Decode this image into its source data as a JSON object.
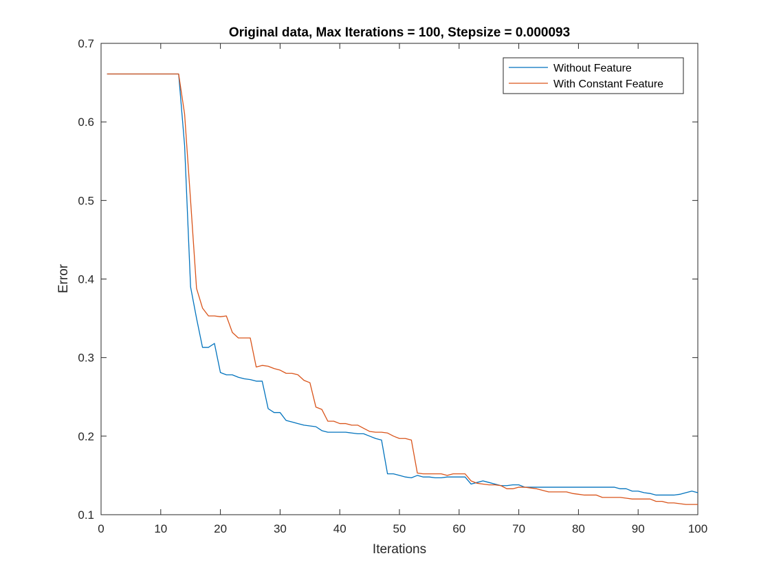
{
  "chart_data": {
    "type": "line",
    "title": "Original data, Max Iterations = 100, Stepsize = 0.000093",
    "xlabel": "Iterations",
    "ylabel": "Error",
    "xlim": [
      0,
      100
    ],
    "ylim": [
      0.1,
      0.7
    ],
    "xticks": [
      "0",
      "10",
      "20",
      "30",
      "40",
      "50",
      "60",
      "70",
      "80",
      "90",
      "100"
    ],
    "yticks": [
      "0.1",
      "0.2",
      "0.3",
      "0.4",
      "0.5",
      "0.6",
      "0.7"
    ],
    "grid": false,
    "legend_position": "top-right",
    "x": [
      1,
      2,
      3,
      4,
      5,
      6,
      7,
      8,
      9,
      10,
      11,
      12,
      13,
      14,
      15,
      16,
      17,
      18,
      19,
      20,
      21,
      22,
      23,
      24,
      25,
      26,
      27,
      28,
      29,
      30,
      31,
      32,
      33,
      34,
      35,
      36,
      37,
      38,
      39,
      40,
      41,
      42,
      43,
      44,
      45,
      46,
      47,
      48,
      49,
      50,
      51,
      52,
      53,
      54,
      55,
      56,
      57,
      58,
      59,
      60,
      61,
      62,
      63,
      64,
      65,
      66,
      67,
      68,
      69,
      70,
      71,
      72,
      73,
      74,
      75,
      76,
      77,
      78,
      79,
      80,
      81,
      82,
      83,
      84,
      85,
      86,
      87,
      88,
      89,
      90,
      91,
      92,
      93,
      94,
      95,
      96,
      97,
      98,
      99,
      100
    ],
    "series": [
      {
        "name": "Without Feature",
        "color": "#0072BD",
        "values": [
          0.661,
          0.661,
          0.661,
          0.661,
          0.661,
          0.661,
          0.661,
          0.661,
          0.661,
          0.661,
          0.661,
          0.661,
          0.661,
          0.57,
          0.39,
          0.35,
          0.313,
          0.313,
          0.318,
          0.281,
          0.278,
          0.278,
          0.275,
          0.273,
          0.272,
          0.27,
          0.27,
          0.235,
          0.23,
          0.23,
          0.22,
          0.218,
          0.216,
          0.214,
          0.213,
          0.212,
          0.207,
          0.205,
          0.205,
          0.205,
          0.205,
          0.204,
          0.203,
          0.203,
          0.2,
          0.197,
          0.195,
          0.152,
          0.152,
          0.15,
          0.148,
          0.147,
          0.15,
          0.148,
          0.148,
          0.147,
          0.147,
          0.148,
          0.148,
          0.148,
          0.148,
          0.139,
          0.141,
          0.143,
          0.141,
          0.139,
          0.137,
          0.137,
          0.138,
          0.138,
          0.135,
          0.135,
          0.135,
          0.135,
          0.135,
          0.135,
          0.135,
          0.135,
          0.135,
          0.135,
          0.135,
          0.135,
          0.135,
          0.135,
          0.135,
          0.135,
          0.133,
          0.133,
          0.13,
          0.13,
          0.128,
          0.127,
          0.125,
          0.125,
          0.125,
          0.125,
          0.126,
          0.128,
          0.13,
          0.128
        ]
      },
      {
        "name": "With Constant Feature",
        "color": "#D95319",
        "values": [
          0.661,
          0.661,
          0.661,
          0.661,
          0.661,
          0.661,
          0.661,
          0.661,
          0.661,
          0.661,
          0.661,
          0.661,
          0.661,
          0.61,
          0.5,
          0.388,
          0.363,
          0.353,
          0.353,
          0.352,
          0.353,
          0.332,
          0.325,
          0.325,
          0.325,
          0.288,
          0.29,
          0.289,
          0.286,
          0.284,
          0.28,
          0.28,
          0.278,
          0.271,
          0.268,
          0.237,
          0.234,
          0.219,
          0.219,
          0.216,
          0.216,
          0.214,
          0.214,
          0.21,
          0.206,
          0.205,
          0.205,
          0.204,
          0.2,
          0.197,
          0.197,
          0.195,
          0.153,
          0.152,
          0.152,
          0.152,
          0.152,
          0.15,
          0.152,
          0.152,
          0.152,
          0.143,
          0.14,
          0.139,
          0.138,
          0.138,
          0.137,
          0.133,
          0.133,
          0.135,
          0.135,
          0.134,
          0.133,
          0.131,
          0.129,
          0.129,
          0.129,
          0.129,
          0.127,
          0.126,
          0.125,
          0.125,
          0.125,
          0.122,
          0.122,
          0.122,
          0.122,
          0.121,
          0.12,
          0.12,
          0.12,
          0.12,
          0.117,
          0.117,
          0.115,
          0.115,
          0.114,
          0.113,
          0.113,
          0.113
        ]
      }
    ]
  }
}
